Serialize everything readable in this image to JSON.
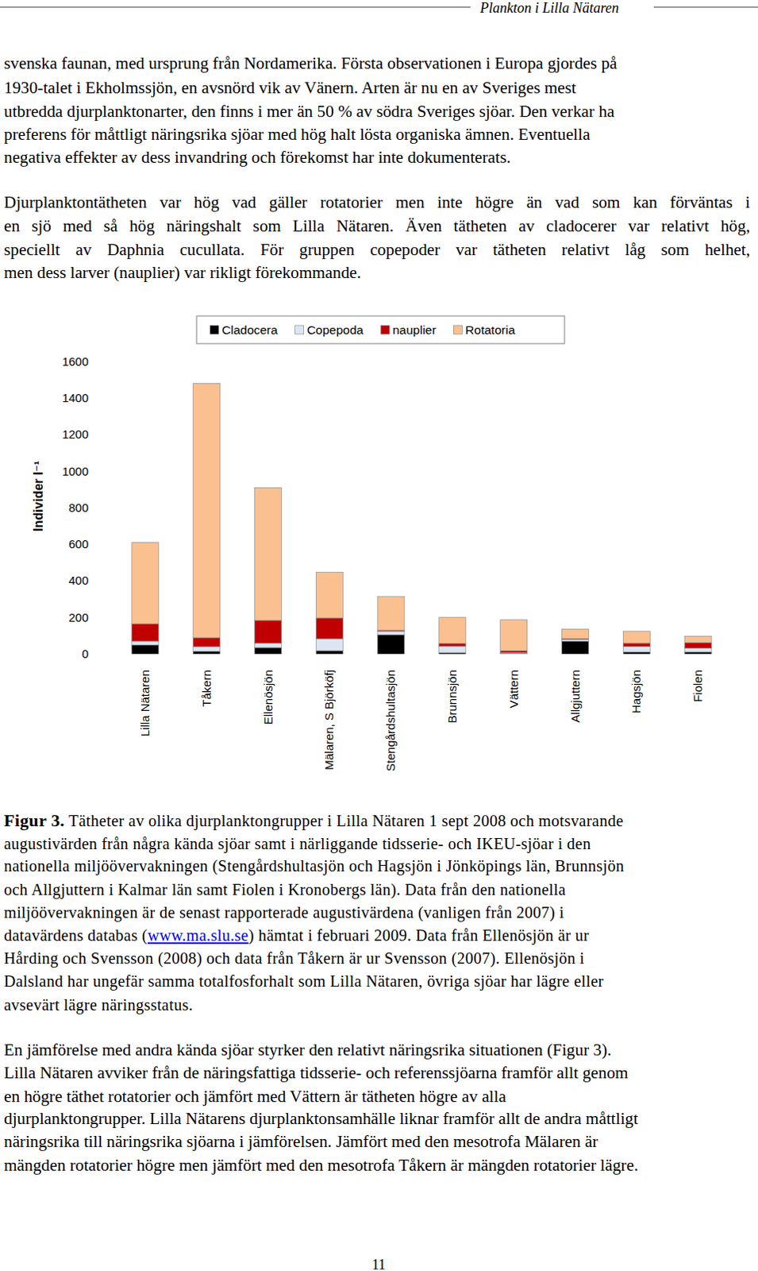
{
  "header": "Plankton i Lilla Nätaren",
  "paragraphs": [
    [
      "svenska faunan, med ursprung från Nordamerika. Första observationen i Europa gjordes på",
      "1930-talet i Ekholmssjön, en avsnörd vik av Vänern. Arten är nu en av Sveriges mest",
      "utbredda djurplanktonarter, den finns i mer än 50 % av södra Sveriges sjöar. Den verkar ha",
      "preferens för måttligt näringsrika sjöar med hög halt lösta organiska ämnen. Eventuella",
      "negativa effekter av dess invandring och förekomst har inte dokumenterats."
    ],
    [
      "Djurplanktontätheten var hög vad gäller rotatorier men inte högre än vad som kan förväntas i",
      "en sjö med så hög näringshalt som Lilla Nätaren. Även tätheten av cladocerer var relativt hög,",
      "speciellt av Daphnia cucullata. För gruppen copepoder var tätheten relativt låg som helhet,",
      "men dess larver (nauplier) var rikligt förekommande."
    ]
  ],
  "chart_data": {
    "type": "bar",
    "stacked": true,
    "grid": false,
    "legend": "top",
    "y_label": "Individer l⁻¹",
    "categories": [
      "Lilla Nätaren",
      "Tåkern",
      "Ellenösjön",
      "Mälaren, S Björköfj",
      "Stengårdshultasjön",
      "Brunnsjön",
      "Vättern",
      "Allgjuttern",
      "Hagsjön",
      "Fiolen"
    ],
    "series": [
      {
        "name": "Cladocera",
        "color": "#000000",
        "values": [
          50,
          15,
          35,
          18,
          105,
          8,
          3,
          70,
          12,
          12
        ]
      },
      {
        "name": "Copepoda",
        "color": "#dce6f2",
        "values": [
          20,
          25,
          25,
          65,
          20,
          35,
          5,
          10,
          30,
          20
        ]
      },
      {
        "name": "nauplier",
        "color": "#c00000",
        "values": [
          95,
          50,
          125,
          115,
          5,
          15,
          10,
          5,
          18,
          30
        ]
      },
      {
        "name": "Rotatoria",
        "color": "#fac090",
        "values": [
          445,
          1390,
          725,
          250,
          185,
          142,
          169,
          52,
          65,
          36
        ]
      }
    ],
    "ylim": [
      0,
      1600
    ],
    "yticks": [
      0,
      200,
      400,
      600,
      800,
      1000,
      1200,
      1400,
      1600
    ]
  },
  "caption": {
    "label": "Figur 3.",
    "link": "www.ma.slu.se",
    "lines": [
      "Tätheter av olika djurplanktongrupper i Lilla Nätaren 1 sept 2008 och motsvarande",
      "augustivärden från några kända sjöar samt i närliggande tidsserie- och IKEU-sjöar i den",
      "nationella miljöövervakningen (Stengårdshultasjön och Hagsjön i Jönköpings län, Brunnsjön",
      "och Allgjuttern i Kalmar län samt Fiolen i Kronobergs län). Data från den nationella",
      "miljöövervakningen är de senast rapporterade augustivärdena (vanligen från 2007) i",
      "datavärdens databas (www.ma.slu.se) hämtat i februari 2009. Data från Ellenösjön är ur",
      "Hårding och Svensson (2008) och data från Tåkern är ur Svensson (2007). Ellenösjön i",
      "Dalsland har ungefär samma totalfosforhalt som Lilla Nätaren, övriga sjöar har lägre eller",
      "avsevärt lägre näringsstatus."
    ]
  },
  "closing_paragraph": [
    "En jämförelse med andra kända sjöar styrker den relativt näringsrika situationen (Figur 3).",
    "Lilla Nätaren avviker från de näringsfattiga tidsserie- och referenssjöarna framför allt genom",
    "en högre täthet rotatorier och jämfört med Vättern är tätheten högre av alla",
    "djurplanktongrupper. Lilla Nätarens djurplanktonsamhälle liknar framför allt de andra måttligt",
    "näringsrika till näringsrika sjöarna i jämförelsen. Jämfört med den mesotrofa Mälaren är",
    "mängden rotatorier högre men jämfört med den mesotrofa Tåkern är mängden rotatorier lägre."
  ],
  "page_number": 11
}
